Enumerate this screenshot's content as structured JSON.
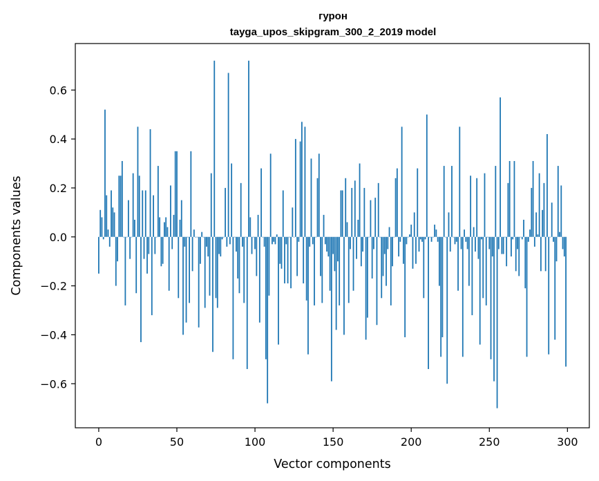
{
  "chart_data": {
    "type": "bar",
    "title": "гурон",
    "subtitle": "tayga_upos_skipgram_300_2_2019 model",
    "xlabel": "Vector components",
    "ylabel": "Components values",
    "xlim": [
      -15,
      314
    ],
    "ylim": [
      -0.78,
      0.79
    ],
    "xticks": [
      0,
      50,
      100,
      150,
      200,
      250,
      300
    ],
    "yticks": [
      -0.6,
      -0.4,
      -0.2,
      0.0,
      0.2,
      0.4,
      0.6
    ],
    "ytick_labels": [
      "−0.6",
      "−0.4",
      "−0.2",
      "0.0",
      "0.2",
      "0.4",
      "0.6"
    ],
    "color": "#1f77b4",
    "grid": false,
    "x": "0..299",
    "values": [
      -0.15,
      0.11,
      0.08,
      -0.01,
      0.52,
      0.17,
      0.03,
      -0.04,
      0.19,
      0.12,
      0.1,
      -0.2,
      -0.1,
      0.25,
      0.25,
      0.31,
      0.0,
      -0.28,
      0.0,
      0.15,
      -0.09,
      0.0,
      0.26,
      0.07,
      -0.23,
      0.45,
      0.25,
      -0.43,
      0.19,
      -0.09,
      0.19,
      -0.15,
      -0.07,
      0.44,
      -0.32,
      0.17,
      -0.07,
      0.0,
      0.29,
      0.08,
      -0.12,
      -0.11,
      0.06,
      0.08,
      0.04,
      -0.22,
      0.21,
      -0.05,
      0.09,
      0.35,
      0.35,
      -0.25,
      0.07,
      0.15,
      -0.4,
      -0.04,
      -0.35,
      0.0,
      -0.27,
      0.35,
      -0.14,
      0.03,
      0.0,
      0.0,
      -0.37,
      -0.11,
      0.02,
      0.0,
      -0.29,
      -0.04,
      -0.08,
      -0.24,
      0.26,
      -0.47,
      0.72,
      -0.25,
      -0.29,
      -0.07,
      -0.08,
      -0.01,
      0.0,
      0.2,
      -0.04,
      0.67,
      -0.03,
      0.3,
      -0.5,
      0.0,
      -0.06,
      -0.17,
      -0.23,
      0.22,
      -0.04,
      -0.27,
      0.0,
      -0.54,
      0.72,
      0.08,
      -0.07,
      0.0,
      -0.05,
      -0.16,
      0.09,
      -0.35,
      0.28,
      0.0,
      -0.04,
      -0.5,
      -0.68,
      -0.24,
      0.34,
      -0.03,
      -0.02,
      -0.03,
      0.01,
      -0.44,
      -0.11,
      -0.13,
      0.19,
      -0.19,
      -0.03,
      -0.19,
      0.0,
      -0.21,
      0.12,
      0.0,
      0.4,
      -0.16,
      -0.02,
      0.39,
      0.47,
      -0.19,
      0.45,
      -0.26,
      -0.48,
      -0.04,
      0.32,
      -0.03,
      -0.28,
      0.0,
      0.24,
      0.34,
      -0.16,
      -0.27,
      0.09,
      -0.03,
      -0.06,
      -0.08,
      -0.22,
      -0.59,
      -0.07,
      -0.14,
      -0.38,
      -0.1,
      -0.28,
      0.19,
      0.19,
      -0.4,
      0.24,
      0.06,
      -0.27,
      -0.05,
      0.2,
      -0.22,
      0.23,
      -0.09,
      0.07,
      0.3,
      -0.12,
      -0.06,
      0.2,
      -0.42,
      -0.33,
      0.0,
      0.15,
      -0.17,
      -0.05,
      0.16,
      -0.36,
      0.22,
      0.0,
      -0.25,
      -0.16,
      -0.07,
      -0.2,
      -0.05,
      0.04,
      -0.28,
      -0.12,
      0.0,
      0.24,
      0.28,
      -0.08,
      -0.02,
      0.45,
      -0.11,
      -0.41,
      -0.03,
      0.0,
      0.01,
      0.05,
      -0.13,
      0.1,
      -0.11,
      0.28,
      -0.06,
      -0.01,
      -0.02,
      -0.25,
      -0.01,
      0.5,
      -0.54,
      0.0,
      -0.02,
      0.0,
      0.05,
      0.03,
      -0.02,
      -0.2,
      -0.49,
      -0.41,
      0.29,
      0.0,
      -0.6,
      0.1,
      -0.06,
      0.29,
      0.0,
      -0.03,
      -0.02,
      -0.22,
      0.45,
      -0.05,
      -0.49,
      0.03,
      -0.02,
      -0.05,
      -0.2,
      0.25,
      -0.32,
      0.04,
      -0.06,
      0.24,
      -0.09,
      -0.44,
      -0.01,
      -0.25,
      0.26,
      -0.28,
      0.0,
      -0.05,
      -0.5,
      -0.08,
      -0.59,
      0.29,
      -0.7,
      -0.05,
      0.57,
      -0.07,
      -0.07,
      0.0,
      -0.12,
      0.22,
      0.31,
      -0.08,
      -0.01,
      0.31,
      -0.14,
      -0.05,
      -0.16,
      0.0,
      -0.01,
      0.07,
      -0.21,
      -0.49,
      -0.02,
      0.03,
      0.2,
      0.31,
      -0.04,
      0.1,
      0.01,
      0.26,
      -0.14,
      0.11,
      0.22,
      -0.14,
      0.42,
      -0.48,
      0.0,
      0.14,
      -0.02,
      -0.42,
      -0.1,
      0.29,
      0.02,
      0.21,
      -0.05,
      -0.08,
      -0.53
    ]
  }
}
